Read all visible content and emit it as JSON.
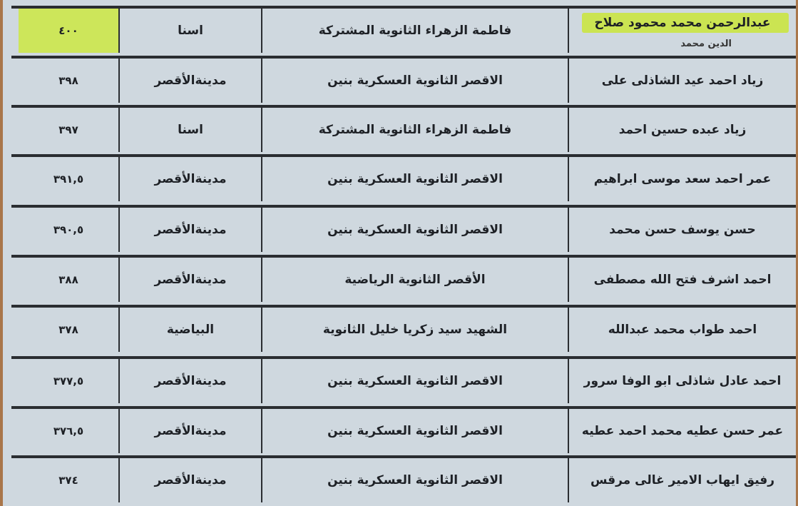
{
  "rows": [
    {
      "name": "عبدالرحمن محمد محمود صلاح",
      "name_line2": "الدين محمد",
      "school": "فاطمة الزهراء الثانوية المشتركة",
      "city": "اسنا",
      "score": "٤٠٠",
      "highlighted": true
    },
    {
      "name": "زياد احمد عيد الشاذلى على",
      "school": "الاقصر الثانوية العسكرية بنين",
      "city": "مدينةالأقصر",
      "score": "٣٩٨"
    },
    {
      "name": "زياد عبده حسين احمد",
      "school": "فاطمة الزهراء الثانوية المشتركة",
      "city": "اسنا",
      "score": "٣٩٧"
    },
    {
      "name": "عمر احمد سعد موسى ابراهيم",
      "school": "الاقصر الثانوية العسكرية بنين",
      "city": "مدينةالأقصر",
      "score": "٣٩١,٥"
    },
    {
      "name": "حسن يوسف حسن محمد",
      "school": "الاقصر الثانوية العسكرية بنين",
      "city": "مدينةالأقصر",
      "score": "٣٩٠,٥"
    },
    {
      "name": "احمد اشرف فتح الله مصطفى",
      "school": "الأقصر الثانوية الرياضية",
      "city": "مدينةالأقصر",
      "score": "٣٨٨"
    },
    {
      "name": "احمد طواب محمد عبدالله",
      "school": "الشهيد سيد زكريا خليل الثانوية",
      "city": "البياضية",
      "score": "٣٧٨"
    },
    {
      "name": "احمد عادل شاذلى ابو الوفا سرور",
      "school": "الاقصر الثانوية العسكرية بنين",
      "city": "مدينةالأقصر",
      "score": "٣٧٧,٥"
    },
    {
      "name": "عمر حسن عطيه محمد احمد عطيه",
      "school": "الاقصر الثانوية العسكرية بنين",
      "city": "مدينةالأقصر",
      "score": "٣٧٦,٥"
    },
    {
      "name": "رفيق ايهاب الامير غالى مرقس",
      "school": "الاقصر الثانوية العسكرية بنين",
      "city": "مدينةالأقصر",
      "score": "٣٧٤"
    }
  ],
  "colors": {
    "paper": "#cfd8df",
    "highlight": "#cde65a",
    "border": "#2a2d31"
  }
}
